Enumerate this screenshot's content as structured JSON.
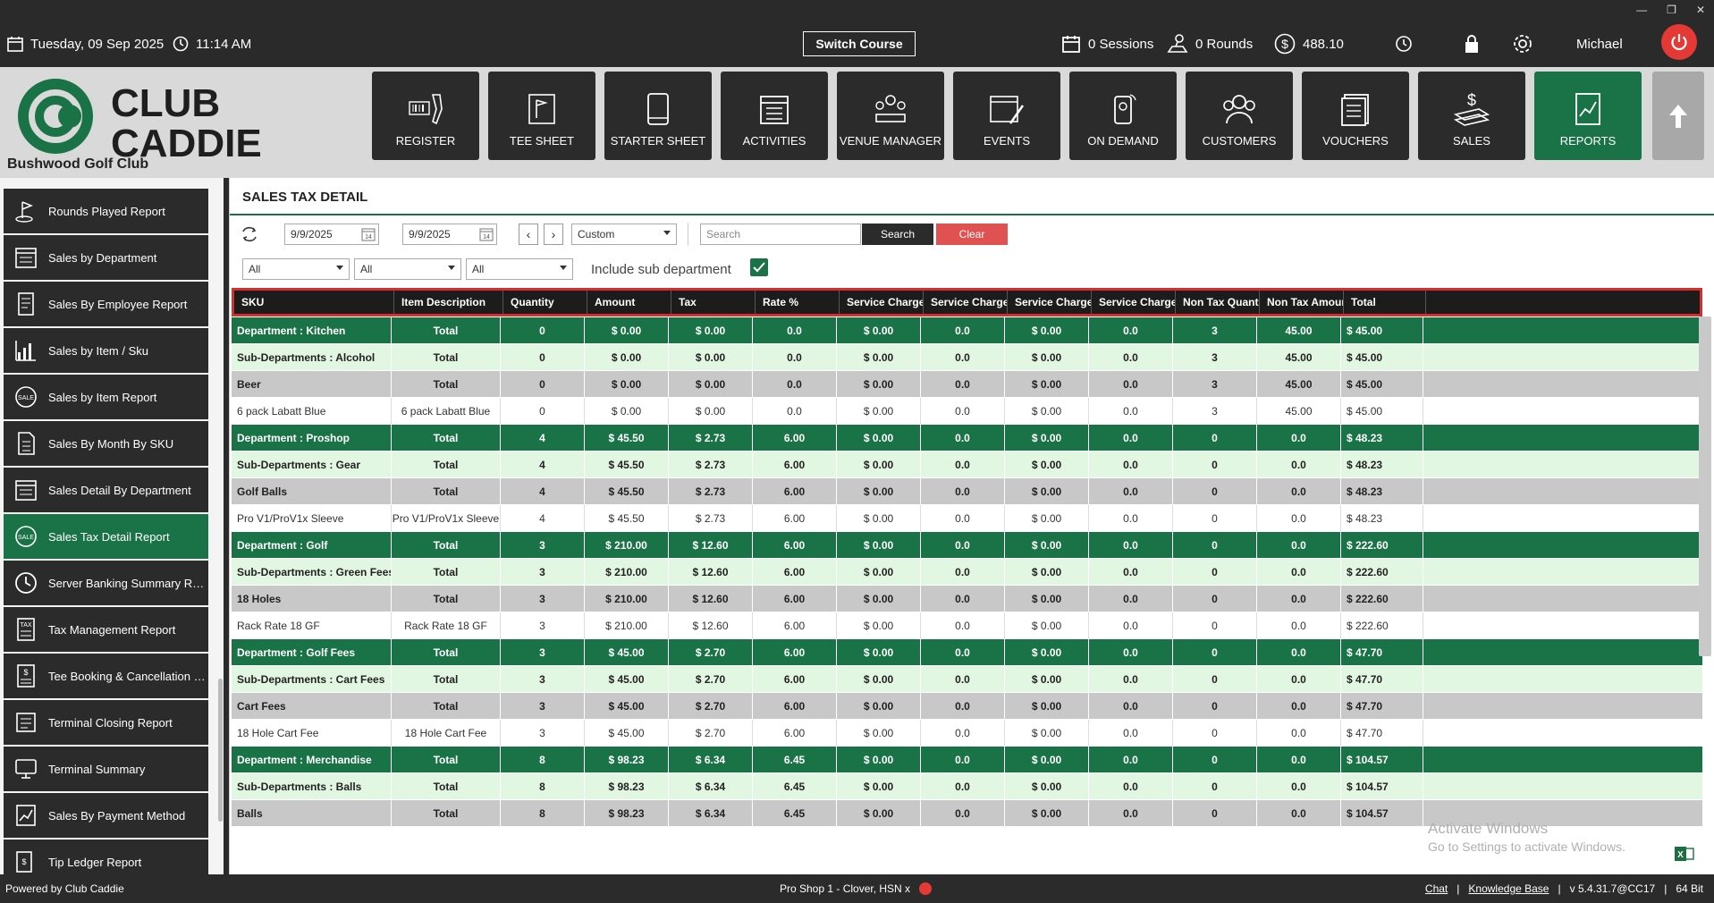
{
  "topbar": {
    "date": "Tuesday,  09 Sep 2025",
    "time": "11:14 AM",
    "switch_course": "Switch Course",
    "sessions": "0 Sessions",
    "rounds": "0 Rounds",
    "balance": "488.10",
    "user": "Michael"
  },
  "header": {
    "logo_line1": "CLUB",
    "logo_line2": "CADDIE",
    "club_name": "Bushwood Golf Club",
    "nav": [
      {
        "label": "REGISTER",
        "icon": "register-icon"
      },
      {
        "label": "TEE SHEET",
        "icon": "tee-sheet-icon"
      },
      {
        "label": "STARTER SHEET",
        "icon": "starter-sheet-icon"
      },
      {
        "label": "ACTIVITIES",
        "icon": "activities-icon"
      },
      {
        "label": "VENUE MANAGER",
        "icon": "venue-manager-icon"
      },
      {
        "label": "EVENTS",
        "icon": "events-icon"
      },
      {
        "label": "ON DEMAND",
        "icon": "on-demand-icon"
      },
      {
        "label": "CUSTOMERS",
        "icon": "customers-icon"
      },
      {
        "label": "VOUCHERS",
        "icon": "vouchers-icon"
      },
      {
        "label": "SALES",
        "icon": "sales-icon"
      },
      {
        "label": "REPORTS",
        "icon": "reports-icon"
      }
    ]
  },
  "sidebar": {
    "items": [
      {
        "label": "Rounds Played Report"
      },
      {
        "label": "Sales by Department"
      },
      {
        "label": "Sales By Employee Report"
      },
      {
        "label": "Sales by Item / Sku"
      },
      {
        "label": "Sales by Item Report"
      },
      {
        "label": "Sales By Month By SKU"
      },
      {
        "label": "Sales Detail By Department"
      },
      {
        "label": "Sales Tax Detail Report"
      },
      {
        "label": "Server Banking Summary Rep..."
      },
      {
        "label": "Tax Management Report"
      },
      {
        "label": "Tee Booking & Cancellation R..."
      },
      {
        "label": "Terminal Closing Report"
      },
      {
        "label": "Terminal Summary"
      },
      {
        "label": "Sales By Payment Method"
      },
      {
        "label": "Tip Ledger Report"
      }
    ]
  },
  "main": {
    "title": "SALES TAX DETAIL",
    "date_from": "9/9/2025",
    "date_to": "9/9/2025",
    "period": "Custom",
    "search_placeholder": "Search",
    "search_label": "Search",
    "clear_label": "Clear",
    "filter1": "All",
    "filter2": "All",
    "filter3": "All",
    "include_sub": "Include sub department",
    "columns": [
      "SKU",
      "Item Description",
      "Quantity",
      "Amount",
      "Tax",
      "Rate %",
      "Service Charge",
      "Service Charge %",
      "Service Charge Ta",
      "Service Charge Ta",
      "Non Tax Quantity",
      "Non Tax Amount",
      "Total"
    ],
    "rows": [
      {
        "type": "dept",
        "cells": [
          "Department : Kitchen",
          "Total",
          "0",
          "$ 0.00",
          "$ 0.00",
          "0.0",
          "$ 0.00",
          "0.0",
          "$ 0.00",
          "0.0",
          "3",
          "45.00",
          "$ 45.00"
        ]
      },
      {
        "type": "sub",
        "cells": [
          "Sub-Departments : Alcohol",
          "Total",
          "0",
          "$ 0.00",
          "$ 0.00",
          "0.0",
          "$ 0.00",
          "0.0",
          "$ 0.00",
          "0.0",
          "3",
          "45.00",
          "$ 45.00"
        ]
      },
      {
        "type": "cat",
        "cells": [
          "Beer",
          "Total",
          "0",
          "$ 0.00",
          "$ 0.00",
          "0.0",
          "$ 0.00",
          "0.0",
          "$ 0.00",
          "0.0",
          "3",
          "45.00",
          "$ 45.00"
        ]
      },
      {
        "type": "item",
        "cells": [
          "6 pack Labatt Blue",
          "6 pack Labatt Blue",
          "0",
          "$ 0.00",
          "$ 0.00",
          "0.0",
          "$ 0.00",
          "0.0",
          "$ 0.00",
          "0.0",
          "3",
          "45.00",
          "$ 45.00"
        ]
      },
      {
        "type": "dept",
        "cells": [
          "Department : Proshop",
          "Total",
          "4",
          "$ 45.50",
          "$ 2.73",
          "6.00",
          "$ 0.00",
          "0.0",
          "$ 0.00",
          "0.0",
          "0",
          "0.0",
          "$ 48.23"
        ]
      },
      {
        "type": "sub",
        "cells": [
          "Sub-Departments : Gear",
          "Total",
          "4",
          "$ 45.50",
          "$ 2.73",
          "6.00",
          "$ 0.00",
          "0.0",
          "$ 0.00",
          "0.0",
          "0",
          "0.0",
          "$ 48.23"
        ]
      },
      {
        "type": "cat",
        "cells": [
          "Golf Balls",
          "Total",
          "4",
          "$ 45.50",
          "$ 2.73",
          "6.00",
          "$ 0.00",
          "0.0",
          "$ 0.00",
          "0.0",
          "0",
          "0.0",
          "$ 48.23"
        ]
      },
      {
        "type": "item",
        "cells": [
          "Pro V1/ProV1x Sleeve",
          "Pro V1/ProV1x Sleeve",
          "4",
          "$ 45.50",
          "$ 2.73",
          "6.00",
          "$ 0.00",
          "0.0",
          "$ 0.00",
          "0.0",
          "0",
          "0.0",
          "$ 48.23"
        ]
      },
      {
        "type": "dept",
        "cells": [
          "Department : Golf",
          "Total",
          "3",
          "$ 210.00",
          "$ 12.60",
          "6.00",
          "$ 0.00",
          "0.0",
          "$ 0.00",
          "0.0",
          "0",
          "0.0",
          "$ 222.60"
        ]
      },
      {
        "type": "sub",
        "cells": [
          "Sub-Departments : Green Fees",
          "Total",
          "3",
          "$ 210.00",
          "$ 12.60",
          "6.00",
          "$ 0.00",
          "0.0",
          "$ 0.00",
          "0.0",
          "0",
          "0.0",
          "$ 222.60"
        ]
      },
      {
        "type": "cat",
        "cells": [
          "18 Holes",
          "Total",
          "3",
          "$ 210.00",
          "$ 12.60",
          "6.00",
          "$ 0.00",
          "0.0",
          "$ 0.00",
          "0.0",
          "0",
          "0.0",
          "$ 222.60"
        ]
      },
      {
        "type": "item",
        "cells": [
          "Rack Rate 18 GF",
          "Rack Rate 18 GF",
          "3",
          "$ 210.00",
          "$ 12.60",
          "6.00",
          "$ 0.00",
          "0.0",
          "$ 0.00",
          "0.0",
          "0",
          "0.0",
          "$ 222.60"
        ]
      },
      {
        "type": "dept",
        "cells": [
          "Department : Golf Fees",
          "Total",
          "3",
          "$ 45.00",
          "$ 2.70",
          "6.00",
          "$ 0.00",
          "0.0",
          "$ 0.00",
          "0.0",
          "0",
          "0.0",
          "$ 47.70"
        ]
      },
      {
        "type": "sub",
        "cells": [
          "Sub-Departments : Cart Fees",
          "Total",
          "3",
          "$ 45.00",
          "$ 2.70",
          "6.00",
          "$ 0.00",
          "0.0",
          "$ 0.00",
          "0.0",
          "0",
          "0.0",
          "$ 47.70"
        ]
      },
      {
        "type": "cat",
        "cells": [
          "Cart Fees",
          "Total",
          "3",
          "$ 45.00",
          "$ 2.70",
          "6.00",
          "$ 0.00",
          "0.0",
          "$ 0.00",
          "0.0",
          "0",
          "0.0",
          "$ 47.70"
        ]
      },
      {
        "type": "item",
        "cells": [
          "18 Hole Cart Fee",
          "18 Hole Cart Fee",
          "3",
          "$ 45.00",
          "$ 2.70",
          "6.00",
          "$ 0.00",
          "0.0",
          "$ 0.00",
          "0.0",
          "0",
          "0.0",
          "$ 47.70"
        ]
      },
      {
        "type": "dept",
        "cells": [
          "Department : Merchandise",
          "Total",
          "8",
          "$ 98.23",
          "$ 6.34",
          "6.45",
          "$ 0.00",
          "0.0",
          "$ 0.00",
          "0.0",
          "0",
          "0.0",
          "$ 104.57"
        ]
      },
      {
        "type": "sub",
        "cells": [
          "Sub-Departments : Balls",
          "Total",
          "8",
          "$ 98.23",
          "$ 6.34",
          "6.45",
          "$ 0.00",
          "0.0",
          "$ 0.00",
          "0.0",
          "0",
          "0.0",
          "$ 104.57"
        ]
      },
      {
        "type": "cat",
        "cells": [
          "Balls",
          "Total",
          "8",
          "$ 98.23",
          "$ 6.34",
          "6.45",
          "$ 0.00",
          "0.0",
          "$ 0.00",
          "0.0",
          "0",
          "0.0",
          "$ 104.57"
        ]
      }
    ],
    "watermark_title": "Activate Windows",
    "watermark_sub": "Go to Settings to activate Windows."
  },
  "footer": {
    "powered": "Powered by Club Caddie",
    "station": "Pro Shop 1 - Clover, HSN x",
    "chat": "Chat",
    "sep": "|",
    "kb": "Knowledge Base",
    "version": "v 5.4.31.7@CC17",
    "arch": "64 Bit"
  },
  "colors": {
    "brand_green": "#1a7346",
    "light_green": "#e2f7e2",
    "dark": "#2b2b2b",
    "alert_red": "#e53935"
  }
}
